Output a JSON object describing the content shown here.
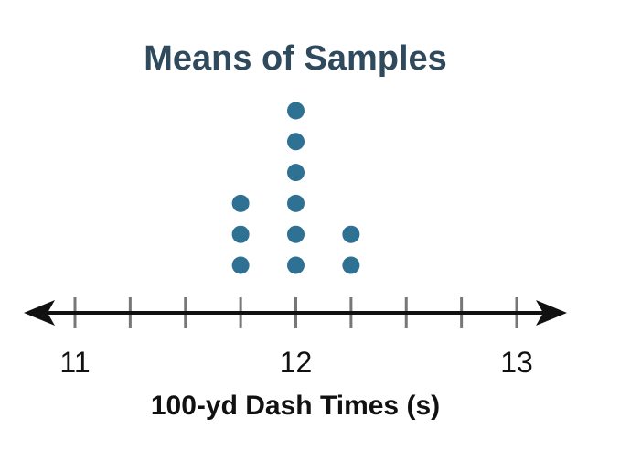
{
  "chart_data": {
    "type": "scatter",
    "subtype": "dot-plot",
    "title": "Means of Samples",
    "xlabel": "100-yd Dash Times (s)",
    "ylabel": "",
    "xlim": [
      11,
      13
    ],
    "minor_tick_step": 0.25,
    "tick_labels": [
      "11",
      "12",
      "13"
    ],
    "tick_values": [
      11,
      12,
      13
    ],
    "points": [
      {
        "x": 11.75,
        "count": 3
      },
      {
        "x": 12.0,
        "count": 6
      },
      {
        "x": 12.25,
        "count": 2
      }
    ],
    "dot_color": "#2e7193",
    "axis_color": "#111111",
    "tick_color": "#777777",
    "title_color": "#2f4a5c",
    "grid": false,
    "legend": "none"
  }
}
